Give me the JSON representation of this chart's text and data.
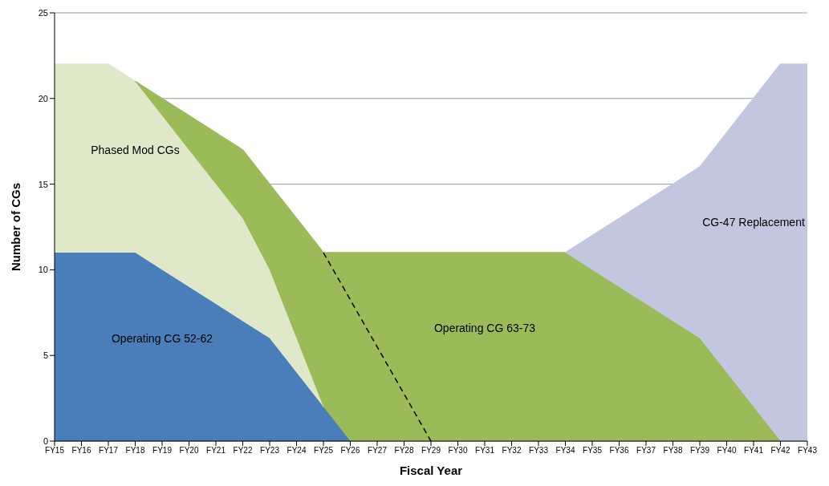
{
  "chart_data": {
    "type": "area",
    "stacked": true,
    "xlabel": "Fiscal Year",
    "ylabel": "Number of CGs",
    "ylim": [
      0,
      25
    ],
    "yticks": [
      0,
      5,
      10,
      15,
      20,
      25
    ],
    "grid": "y",
    "legend": false,
    "categories": [
      "FY15",
      "FY16",
      "FY17",
      "FY18",
      "FY19",
      "FY20",
      "FY21",
      "FY22",
      "FY23",
      "FY24",
      "FY25",
      "FY26",
      "FY27",
      "FY28",
      "FY29",
      "FY30",
      "FY31",
      "FY32",
      "FY33",
      "FY34",
      "FY35",
      "FY36",
      "FY37",
      "FY38",
      "FY39",
      "FY40",
      "FY41",
      "FY42",
      "FY43"
    ],
    "series": [
      {
        "name": "Operating CG 52-62",
        "color": "#4a7ebb",
        "values": [
          11,
          11,
          11,
          11,
          10,
          9,
          8,
          7,
          6,
          4,
          2,
          0,
          null,
          null,
          null,
          null,
          null,
          null,
          null,
          null,
          null,
          null,
          null,
          null,
          null,
          null,
          null,
          null,
          null
        ]
      },
      {
        "name": "Phased Mod CGs",
        "color": "#dfe8c8",
        "values": [
          11,
          11,
          11,
          10,
          9,
          8,
          7,
          6,
          4,
          2,
          0,
          null,
          null,
          null,
          null,
          null,
          null,
          null,
          null,
          null,
          null,
          null,
          null,
          null,
          null,
          null,
          null,
          null,
          null
        ]
      },
      {
        "name": "Operating CG 63-73",
        "color": "#9bbb59",
        "values": [
          null,
          null,
          null,
          0,
          1,
          2,
          3,
          4,
          5,
          7,
          9,
          11,
          11,
          11,
          11,
          11,
          11,
          11,
          11,
          11,
          10,
          9,
          8,
          7,
          6,
          4,
          2,
          0,
          null
        ]
      },
      {
        "name": "CG-47 Replacement",
        "color": "#c3c6df",
        "values": [
          null,
          null,
          null,
          null,
          null,
          null,
          null,
          null,
          null,
          null,
          null,
          null,
          null,
          null,
          null,
          null,
          null,
          null,
          null,
          0,
          2,
          4,
          6,
          8,
          10,
          14,
          18,
          22,
          22
        ]
      },
      {
        "type": "line",
        "line_style": "dashed",
        "color": "#000000",
        "values": [
          null,
          null,
          null,
          null,
          null,
          null,
          null,
          null,
          null,
          null,
          11,
          null,
          null,
          null,
          0,
          null,
          null,
          null,
          null,
          null,
          null,
          null,
          null,
          null,
          null,
          null,
          null,
          null,
          null
        ]
      }
    ]
  }
}
